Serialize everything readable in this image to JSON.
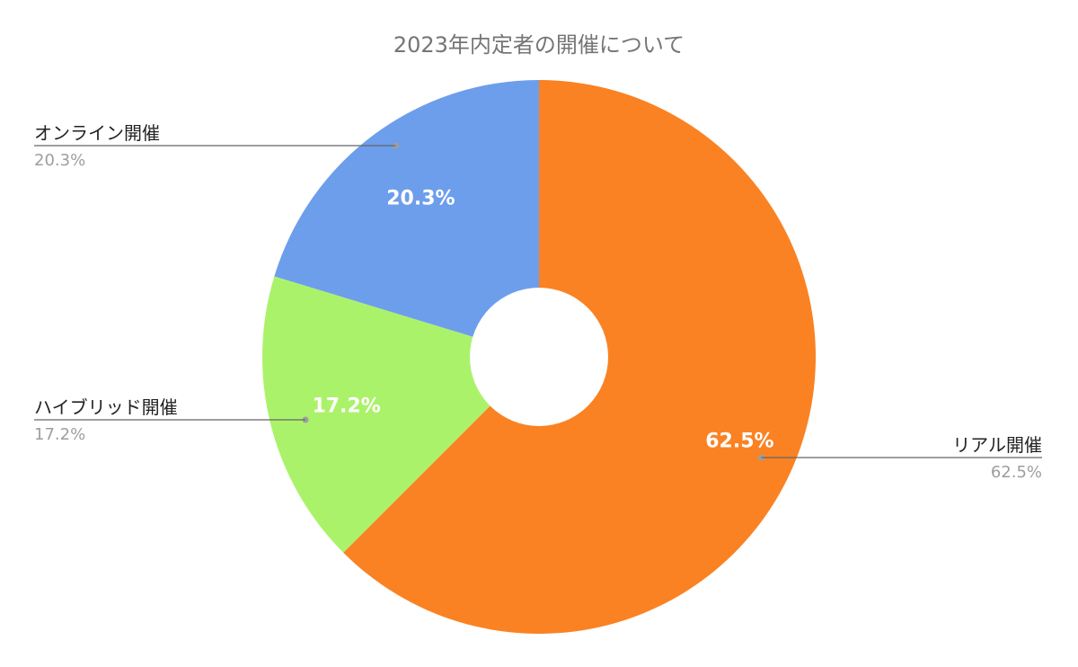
{
  "chart_data": {
    "type": "pie",
    "title": "2023年内定者の開催について",
    "donut": true,
    "direction": "clockwise",
    "start": "top",
    "slices": [
      {
        "label": "リアル開催",
        "value": 62.5,
        "value_label": "62.5%",
        "color": "#fa8223"
      },
      {
        "label": "ハイブリッド開催",
        "value": 17.2,
        "value_label": "17.2%",
        "color": "#abf26b"
      },
      {
        "label": "オンライン開催",
        "value": 20.3,
        "value_label": "20.3%",
        "color": "#6d9eeb"
      }
    ]
  }
}
